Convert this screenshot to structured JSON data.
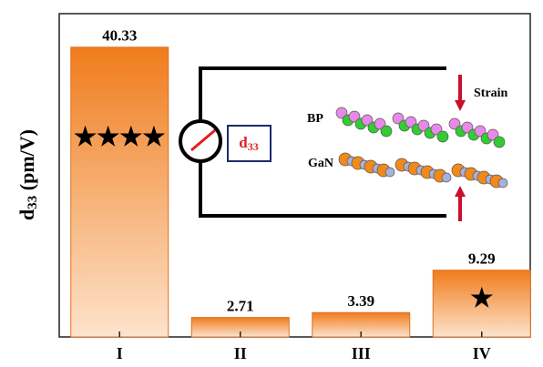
{
  "chart_data": {
    "type": "bar",
    "ylabel_parts": {
      "base": "d",
      "sub": "33",
      "rest": " (pm/V)"
    },
    "categories": [
      "I",
      "II",
      "III",
      "IV"
    ],
    "values": [
      40.33,
      2.71,
      3.39,
      9.29
    ],
    "bar_marks": [
      "★★★★",
      null,
      null,
      "★"
    ],
    "color_top": "#f07c1c",
    "color_bottom": "#fde3cc",
    "ylim": [
      0,
      45
    ],
    "inset": {
      "meter_base": "d",
      "meter_sub": "33",
      "material_top": "BP",
      "material_bottom": "GaN",
      "strain": "Strain"
    }
  }
}
